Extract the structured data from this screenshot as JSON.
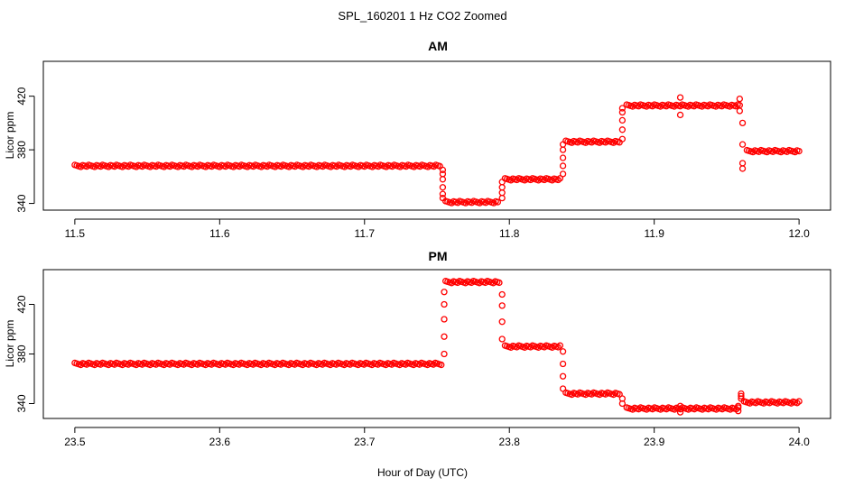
{
  "figure": {
    "title": "SPL_160201  1 Hz CO2 Zoomed",
    "xlabel": "Hour of Day (UTC)"
  },
  "colors": {
    "points": "#ff0000",
    "axes": "#000000",
    "background": "#ffffff"
  },
  "chart_data": [
    {
      "type": "scatter",
      "title": "AM",
      "xlabel": "",
      "ylabel": "Licor ppm",
      "xlim": [
        11.5,
        12.0
      ],
      "ylim": [
        335,
        446
      ],
      "xticks": [
        11.5,
        11.6,
        11.7,
        11.8,
        11.9,
        12.0
      ],
      "xtick_labels": [
        "11.5",
        "11.6",
        "11.7",
        "11.8",
        "11.9",
        "12.0"
      ],
      "yticks": [
        340,
        380,
        420
      ],
      "ytick_labels": [
        "340",
        "380",
        "420"
      ],
      "grid": false,
      "marker": "open-circle",
      "segments": [
        {
          "x_start": 11.5,
          "x_end": 11.752,
          "y": 368
        },
        {
          "x_start": 11.756,
          "x_end": 11.792,
          "y": 341
        },
        {
          "x_start": 11.797,
          "x_end": 11.835,
          "y": 358
        },
        {
          "x_start": 11.839,
          "x_end": 11.876,
          "y": 386
        },
        {
          "x_start": 11.881,
          "x_end": 11.959,
          "y": 413
        },
        {
          "x_start": 11.964,
          "x_end": 12.0,
          "y": 379
        }
      ],
      "transitions": [
        {
          "x": 11.754,
          "y": [
            365,
            362,
            358,
            352,
            347,
            344
          ]
        },
        {
          "x": 11.795,
          "y": [
            344,
            348,
            352,
            356
          ]
        },
        {
          "x": 11.837,
          "y": [
            362,
            368,
            374,
            380,
            384
          ]
        },
        {
          "x": 11.878,
          "y": [
            388,
            395,
            402,
            408,
            411
          ]
        },
        {
          "x": 11.918,
          "y": [
            406,
            419
          ]
        },
        {
          "x": 11.959,
          "y": [
            418,
            409
          ]
        },
        {
          "x": 11.961,
          "y": [
            400,
            384,
            370,
            366
          ]
        }
      ]
    },
    {
      "type": "scatter",
      "title": "PM",
      "xlabel": "",
      "ylabel": "Licor ppm",
      "xlim": [
        23.5,
        24.0
      ],
      "ylim": [
        328,
        448
      ],
      "xticks": [
        23.5,
        23.6,
        23.7,
        23.8,
        23.9,
        24.0
      ],
      "xtick_labels": [
        "23.5",
        "23.6",
        "23.7",
        "23.8",
        "23.9",
        "24.0"
      ],
      "yticks": [
        340,
        380,
        420
      ],
      "ytick_labels": [
        "340",
        "380",
        "420"
      ],
      "grid": false,
      "marker": "open-circle",
      "segments": [
        {
          "x_start": 23.5,
          "x_end": 23.753,
          "y": 372
        },
        {
          "x_start": 23.756,
          "x_end": 23.793,
          "y": 438
        },
        {
          "x_start": 23.797,
          "x_end": 23.835,
          "y": 386
        },
        {
          "x_start": 23.839,
          "x_end": 23.876,
          "y": 348
        },
        {
          "x_start": 23.881,
          "x_end": 23.958,
          "y": 336
        },
        {
          "x_start": 23.962,
          "x_end": 24.0,
          "y": 341
        }
      ],
      "transitions": [
        {
          "x": 23.755,
          "y": [
            380,
            394,
            408,
            420,
            430
          ]
        },
        {
          "x": 23.795,
          "y": [
            428,
            419,
            406,
            392
          ]
        },
        {
          "x": 23.837,
          "y": [
            382,
            372,
            362,
            352
          ]
        },
        {
          "x": 23.878,
          "y": [
            344,
            340
          ]
        },
        {
          "x": 23.918,
          "y": [
            333,
            338
          ]
        },
        {
          "x": 23.958,
          "y": [
            334,
            338
          ]
        },
        {
          "x": 23.96,
          "y": [
            344,
            348,
            346
          ]
        }
      ]
    }
  ]
}
